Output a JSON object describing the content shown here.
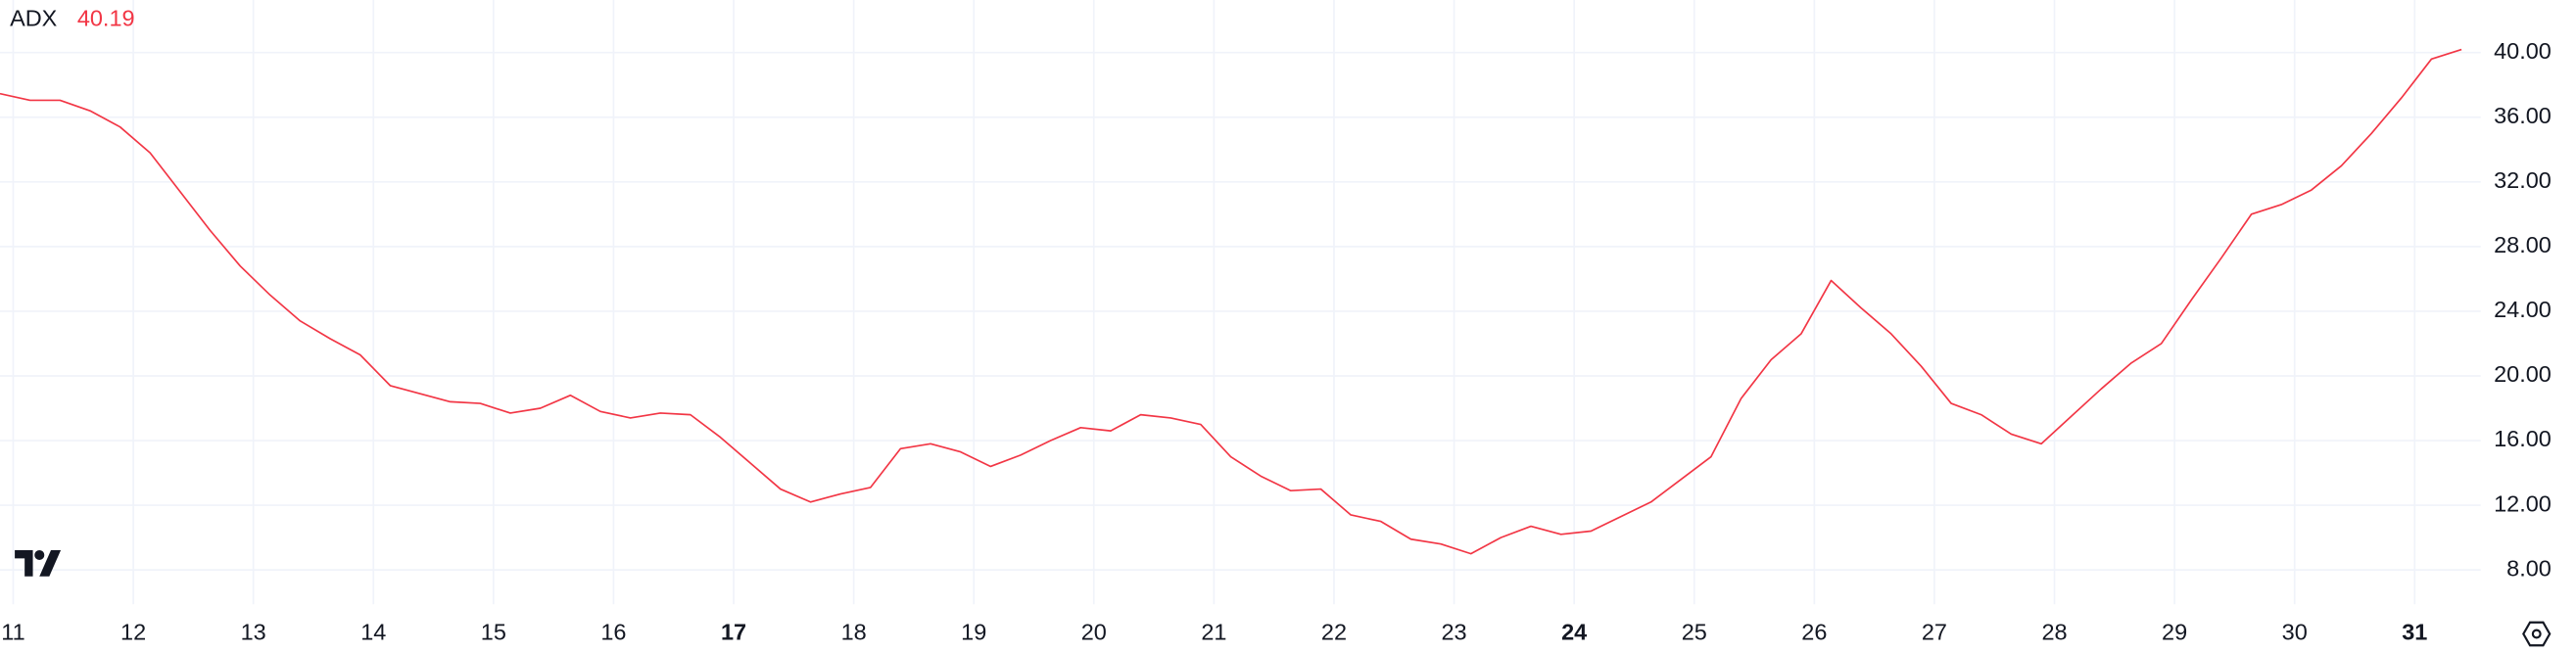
{
  "chart_data": {
    "type": "line",
    "title": "ADX",
    "last_value_label": "40.19",
    "x": [
      10.89,
      11.14,
      11.39,
      11.64,
      11.89,
      12.14,
      12.39,
      12.64,
      12.89,
      13.14,
      13.39,
      13.64,
      13.89,
      14.14,
      14.39,
      14.64,
      14.89,
      15.14,
      15.39,
      15.64,
      15.89,
      16.14,
      16.39,
      16.64,
      16.89,
      17.14,
      17.39,
      17.64,
      17.89,
      18.14,
      18.39,
      18.64,
      18.89,
      19.14,
      19.39,
      19.64,
      19.89,
      20.14,
      20.39,
      20.64,
      20.89,
      21.14,
      21.39,
      21.64,
      21.89,
      22.14,
      22.39,
      22.64,
      22.89,
      23.14,
      23.39,
      23.64,
      23.89,
      24.14,
      24.39,
      24.64,
      24.89,
      25.14,
      25.39,
      25.64,
      25.89,
      26.14,
      26.39,
      26.64,
      26.89,
      27.14,
      27.39,
      27.64,
      27.89,
      28.14,
      28.39,
      28.64,
      28.89,
      29.14,
      29.39,
      29.64,
      29.89,
      30.14,
      30.39,
      30.64,
      30.89,
      31.14,
      31.39
    ],
    "series": [
      {
        "name": "ADX",
        "color": "#f23645",
        "values": [
          37.46,
          37.05,
          37.05,
          36.4,
          35.4,
          33.8,
          31.4,
          29.0,
          26.8,
          25.0,
          23.4,
          22.3,
          21.3,
          19.4,
          18.9,
          18.4,
          18.3,
          17.7,
          18.0,
          18.8,
          17.8,
          17.4,
          17.7,
          17.6,
          16.2,
          14.6,
          13.0,
          12.2,
          12.7,
          13.1,
          15.5,
          15.8,
          15.3,
          14.4,
          15.1,
          16.0,
          16.8,
          16.6,
          17.6,
          17.4,
          17.0,
          15.0,
          13.8,
          12.9,
          13.0,
          11.4,
          11.0,
          9.9,
          9.6,
          9.0,
          10.0,
          10.7,
          10.2,
          10.4,
          11.3,
          12.2,
          13.6,
          15.0,
          18.6,
          21.0,
          22.6,
          25.9,
          24.2,
          22.6,
          20.6,
          18.3,
          17.6,
          16.4,
          15.8,
          17.5,
          19.2,
          20.8,
          22.0,
          24.7,
          27.3,
          30.0,
          30.6,
          31.5,
          33.0,
          35.0,
          37.2,
          39.6,
          40.19
        ]
      }
    ],
    "xlim": [
      10.89,
      31.55
    ],
    "xticks": [
      11,
      12,
      13,
      14,
      15,
      16,
      17,
      18,
      19,
      20,
      21,
      22,
      23,
      24,
      25,
      26,
      27,
      28,
      29,
      30,
      31
    ],
    "bold_xticks": [
      17,
      24,
      31
    ],
    "ylim": [
      5.87,
      43.25
    ],
    "yticks": [
      {
        "value": 8,
        "label": "8.00"
      },
      {
        "value": 12,
        "label": "12.00"
      },
      {
        "value": 16,
        "label": "16.00"
      },
      {
        "value": 20,
        "label": "20.00"
      },
      {
        "value": 24,
        "label": "24.00"
      },
      {
        "value": 28,
        "label": "28.00"
      },
      {
        "value": 32,
        "label": "32.00"
      },
      {
        "value": 36,
        "label": "36.00"
      },
      {
        "value": 40,
        "label": "40.00"
      }
    ],
    "grid": true
  }
}
